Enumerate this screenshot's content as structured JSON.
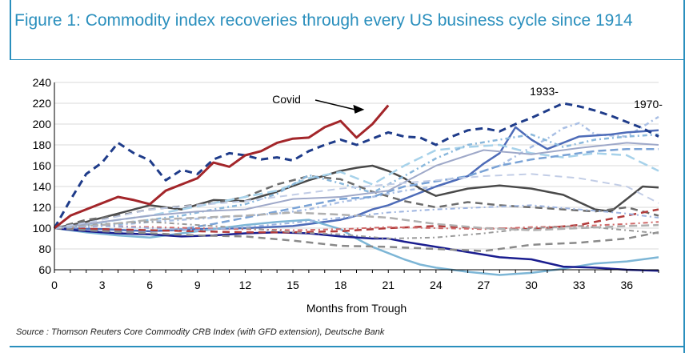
{
  "title": "Figure 1: Commodity index recoveries through every US business cycle since 1914",
  "source": "Source : Thomson Reuters Core Commodity CRB Index (with GFD extension), Deutsche Bank",
  "chart_data": {
    "type": "line",
    "xlabel": "Months from Trough",
    "ylabel": "",
    "xlim": [
      0,
      38
    ],
    "ylim": [
      60,
      240
    ],
    "xticks": [
      0,
      3,
      6,
      9,
      12,
      15,
      18,
      21,
      24,
      27,
      30,
      33,
      36
    ],
    "yticks": [
      60,
      80,
      100,
      120,
      140,
      160,
      180,
      200,
      220,
      240
    ],
    "annotations": [
      {
        "text": "Covid",
        "at": [
          19.8,
          217
        ]
      },
      {
        "text": "1933-",
        "at": [
          31,
          225
        ]
      },
      {
        "text": "1970-",
        "at": [
          38,
          197
        ]
      }
    ],
    "series": [
      {
        "name": "Covid",
        "color": "#a3262a",
        "dash": "solid",
        "width": 3,
        "x": [
          0,
          1,
          2,
          3,
          4,
          5,
          6,
          7,
          8,
          9,
          10,
          11,
          12,
          13,
          14,
          15,
          16,
          17,
          18,
          19,
          20,
          21
        ],
        "values": [
          100,
          112,
          118,
          124,
          130,
          127,
          123,
          136,
          142,
          148,
          163,
          159,
          170,
          174,
          182,
          186,
          187,
          197,
          203,
          187,
          200,
          218
        ]
      },
      {
        "name": "1933-",
        "color": "#1f3c8a",
        "dash": "9,6",
        "width": 3,
        "x": [
          0,
          1,
          2,
          3,
          4,
          5,
          6,
          7,
          8,
          9,
          10,
          11,
          12,
          13,
          14,
          15,
          16,
          17,
          18,
          19,
          20,
          21,
          22,
          23,
          24,
          25,
          26,
          27,
          28,
          29,
          30,
          31,
          32,
          33,
          34,
          35,
          36,
          37,
          38
        ],
        "values": [
          100,
          127,
          152,
          163,
          182,
          172,
          165,
          146,
          156,
          152,
          166,
          172,
          170,
          166,
          168,
          165,
          174,
          180,
          185,
          180,
          186,
          192,
          188,
          187,
          180,
          188,
          194,
          196,
          193,
          200,
          206,
          213,
          220,
          217,
          213,
          208,
          202,
          196,
          188
        ]
      },
      {
        "name": "1970-",
        "color": "#a9bfe4",
        "dash": "6,4,2,4",
        "width": 2.5,
        "x": [
          0,
          2,
          4,
          6,
          8,
          10,
          12,
          14,
          16,
          18,
          20,
          22,
          24,
          26,
          28,
          30,
          31,
          32,
          33,
          34,
          36,
          38
        ],
        "values": [
          100,
          104,
          103,
          106,
          108,
          110,
          112,
          114,
          118,
          125,
          130,
          136,
          140,
          150,
          160,
          178,
          186,
          196,
          201,
          190,
          188,
          207
        ]
      },
      {
        "name": "",
        "color": "#4e6cb8",
        "dash": "solid",
        "width": 2.5,
        "x": [
          0,
          3,
          6,
          9,
          12,
          15,
          18,
          19,
          20,
          21,
          22,
          24,
          26,
          27,
          28,
          29,
          30,
          31,
          33,
          35,
          36,
          38
        ],
        "values": [
          100,
          99,
          97,
          99,
          100,
          102,
          108,
          112,
          118,
          122,
          128,
          140,
          150,
          162,
          172,
          197,
          185,
          176,
          188,
          190,
          192,
          194
        ]
      },
      {
        "name": "",
        "color": "#4a4a4a",
        "dash": "solid",
        "width": 2.5,
        "x": [
          0,
          2,
          4,
          6,
          8,
          10,
          12,
          14,
          16,
          18,
          19,
          20,
          21,
          22,
          23,
          24,
          26,
          28,
          30,
          32,
          34,
          35,
          36,
          37,
          38
        ],
        "values": [
          100,
          106,
          114,
          122,
          118,
          127,
          126,
          135,
          146,
          155,
          158,
          160,
          155,
          148,
          138,
          131,
          138,
          141,
          138,
          132,
          118,
          116,
          128,
          140,
          139
        ]
      },
      {
        "name": "",
        "color": "#6d6d6d",
        "dash": "9,6",
        "width": 2.5,
        "x": [
          0,
          2,
          4,
          6,
          8,
          10,
          12,
          14,
          16,
          18,
          20,
          22,
          24,
          26,
          28,
          30,
          32,
          34,
          36,
          38
        ],
        "values": [
          100,
          108,
          112,
          118,
          121,
          124,
          130,
          142,
          150,
          147,
          135,
          126,
          120,
          125,
          122,
          120,
          118,
          116,
          120,
          112
        ]
      },
      {
        "name": "",
        "color": "#a7d2ea",
        "dash": "12,6",
        "width": 2.5,
        "x": [
          0,
          2,
          4,
          6,
          8,
          10,
          12,
          14,
          16,
          18,
          20,
          22,
          24,
          26,
          28,
          30,
          32,
          34,
          36,
          38
        ],
        "values": [
          100,
          103,
          108,
          112,
          118,
          124,
          130,
          136,
          148,
          154,
          142,
          160,
          175,
          178,
          180,
          172,
          168,
          172,
          170,
          155
        ]
      },
      {
        "name": "",
        "color": "#8ab8dc",
        "dash": "6,4,2,4",
        "width": 2.5,
        "x": [
          0,
          2,
          4,
          6,
          8,
          10,
          12,
          14,
          16,
          18,
          20,
          22,
          24,
          26,
          28,
          30,
          32,
          34,
          36,
          38
        ],
        "values": [
          100,
          101,
          104,
          108,
          112,
          118,
          123,
          133,
          151,
          143,
          134,
          150,
          167,
          180,
          185,
          190,
          178,
          185,
          188,
          190
        ]
      },
      {
        "name": "",
        "color": "#7aa3d6",
        "dash": "10,5",
        "width": 2.5,
        "x": [
          0,
          2,
          4,
          6,
          8,
          10,
          12,
          14,
          16,
          18,
          20,
          22,
          24,
          26,
          28,
          30,
          32,
          34,
          36,
          38
        ],
        "values": [
          100,
          98,
          96,
          97,
          99,
          104,
          110,
          116,
          122,
          128,
          130,
          140,
          145,
          150,
          160,
          166,
          170,
          174,
          176,
          176
        ]
      },
      {
        "name": "",
        "color": "#9fa9c9",
        "dash": "solid",
        "width": 2,
        "x": [
          0,
          3,
          6,
          9,
          12,
          15,
          18,
          21,
          24,
          27,
          30,
          33,
          36,
          38
        ],
        "values": [
          100,
          106,
          112,
          116,
          118,
          128,
          130,
          136,
          160,
          175,
          171,
          177,
          182,
          180
        ]
      },
      {
        "name": "",
        "color": "#7db6d6",
        "dash": "solid",
        "width": 2.5,
        "x": [
          0,
          2,
          4,
          6,
          8,
          10,
          12,
          14,
          16,
          18,
          19,
          20,
          21,
          22,
          23,
          24,
          26,
          28,
          30,
          32,
          34,
          36,
          38
        ],
        "values": [
          100,
          96,
          93,
          91,
          95,
          99,
          103,
          106,
          108,
          99,
          90,
          82,
          76,
          70,
          65,
          62,
          58,
          55,
          57,
          61,
          66,
          68,
          72
        ]
      },
      {
        "name": "",
        "color": "#1a1d8f",
        "dash": "solid",
        "width": 2.5,
        "x": [
          0,
          2,
          4,
          6,
          8,
          10,
          12,
          14,
          16,
          18,
          20,
          21,
          22,
          24,
          26,
          28,
          30,
          32,
          34,
          36,
          38
        ],
        "values": [
          100,
          97,
          95,
          94,
          92,
          93,
          95,
          96,
          95,
          92,
          90,
          90,
          87,
          82,
          77,
          72,
          70,
          63,
          62,
          60,
          59
        ]
      },
      {
        "name": "",
        "color": "#b23b3b",
        "dash": "9,6",
        "width": 2.5,
        "x": [
          0,
          3,
          6,
          9,
          12,
          15,
          18,
          21,
          24,
          27,
          30,
          33,
          36,
          38
        ],
        "values": [
          100,
          99,
          98,
          97,
          96,
          96,
          97,
          100,
          102,
          100,
          99,
          103,
          112,
          118
        ]
      },
      {
        "name": "",
        "color": "#d06a6a",
        "dash": "6,4,2,4",
        "width": 2,
        "x": [
          0,
          3,
          6,
          9,
          12,
          15,
          18,
          21,
          24,
          27,
          30,
          33,
          36,
          38
        ],
        "values": [
          100,
          102,
          101,
          100,
          99,
          98,
          99,
          101,
          100,
          99,
          101,
          102,
          104,
          106
        ]
      },
      {
        "name": "",
        "color": "#8a8a8a",
        "dash": "9,6",
        "width": 2.5,
        "x": [
          0,
          3,
          6,
          9,
          12,
          15,
          18,
          21,
          24,
          27,
          30,
          33,
          36,
          38
        ],
        "values": [
          100,
          97,
          95,
          93,
          92,
          88,
          83,
          82,
          80,
          78,
          84,
          86,
          90,
          96
        ]
      },
      {
        "name": "",
        "color": "#9a9a9a",
        "dash": "6,4,2,4",
        "width": 2,
        "x": [
          0,
          3,
          6,
          9,
          12,
          15,
          18,
          21,
          24,
          27,
          30,
          33,
          36,
          38
        ],
        "values": [
          100,
          104,
          106,
          103,
          100,
          96,
          94,
          90,
          91,
          95,
          100,
          102,
          98,
          95
        ]
      },
      {
        "name": "",
        "color": "#b0b0b0",
        "dash": "10,5",
        "width": 2.5,
        "x": [
          0,
          3,
          6,
          9,
          12,
          15,
          18,
          21,
          24,
          27,
          30,
          33,
          36,
          38
        ],
        "values": [
          100,
          103,
          108,
          110,
          112,
          115,
          113,
          110,
          104,
          100,
          98,
          100,
          102,
          103
        ]
      },
      {
        "name": "",
        "color": "#c2cde6",
        "dash": "9,6",
        "width": 2,
        "x": [
          0,
          3,
          6,
          9,
          12,
          15,
          18,
          21,
          24,
          27,
          30,
          33,
          36,
          38
        ],
        "values": [
          100,
          108,
          118,
          122,
          126,
          132,
          138,
          142,
          146,
          150,
          152,
          148,
          140,
          124
        ]
      },
      {
        "name": "",
        "color": "#9db4e0",
        "dash": "6,4,2,4",
        "width": 2,
        "x": [
          0,
          3,
          6,
          9,
          12,
          15,
          18,
          21,
          24,
          27,
          30,
          33,
          36,
          38
        ],
        "values": [
          100,
          102,
          100,
          98,
          101,
          105,
          110,
          115,
          118,
          120,
          122,
          118,
          114,
          110
        ]
      }
    ]
  }
}
